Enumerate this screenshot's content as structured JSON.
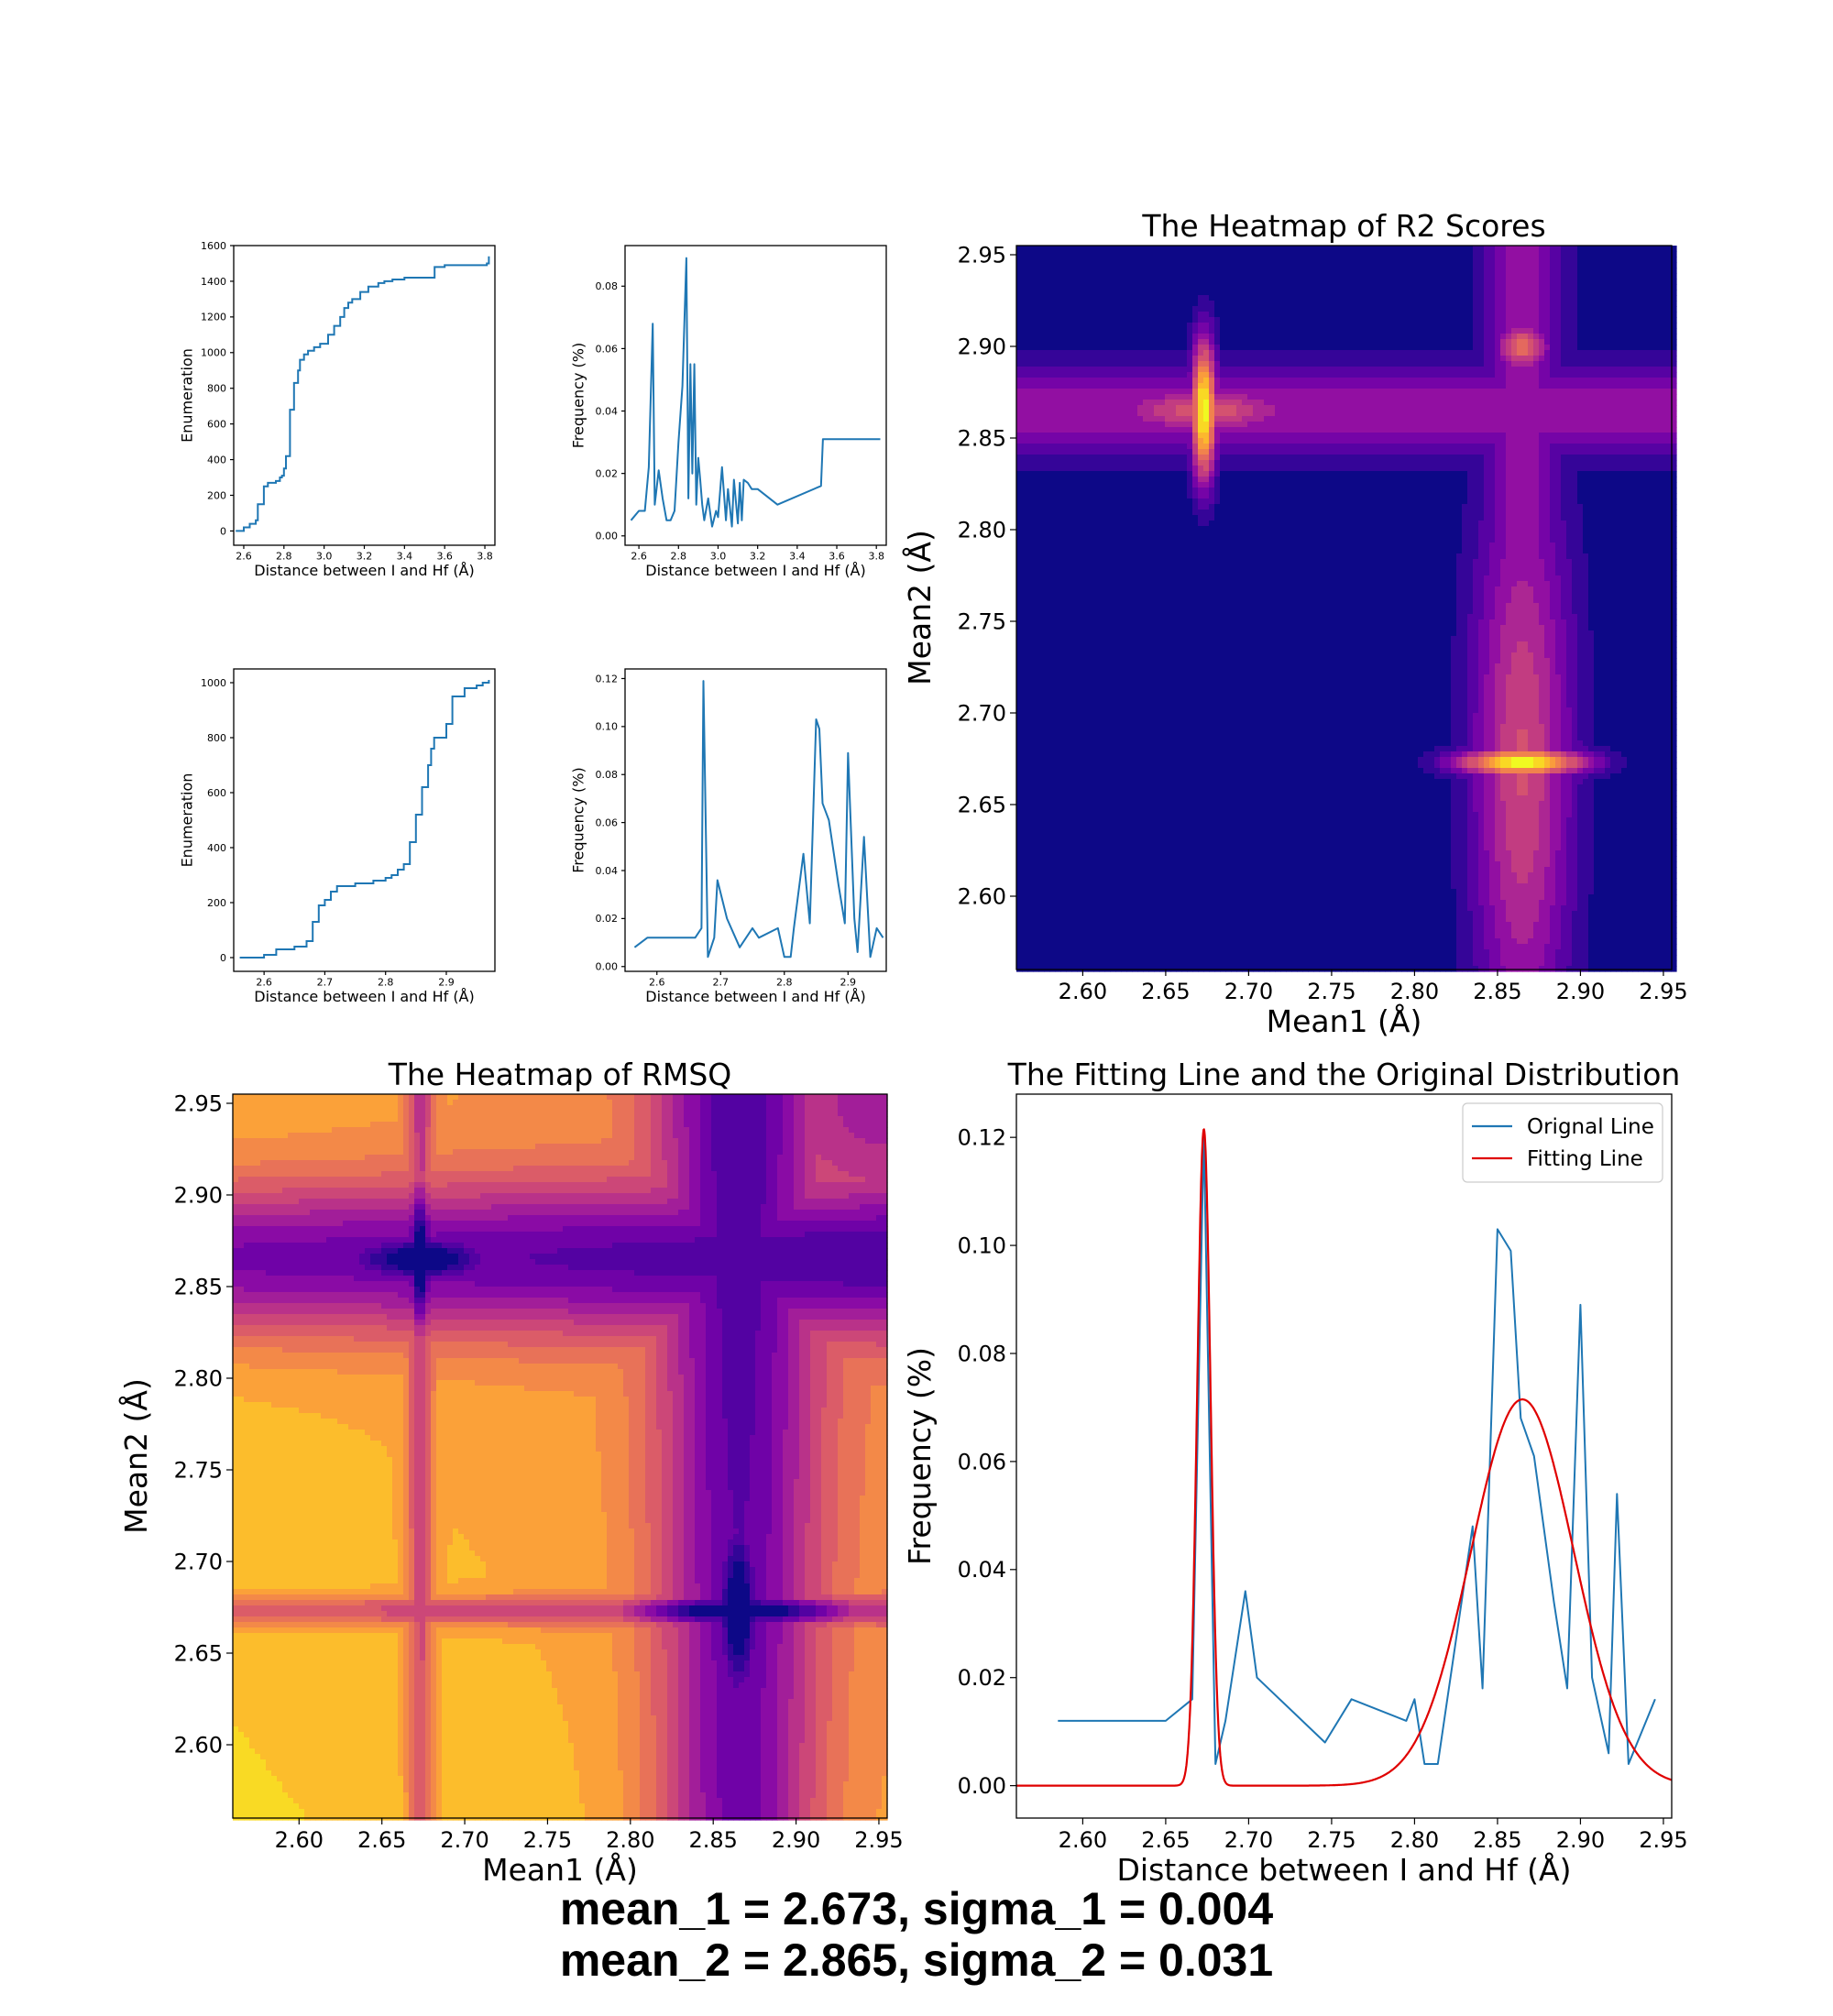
{
  "colors": {
    "line_blue": "#1f77b4",
    "fit_red": "#e00000",
    "plasma_low": "#0d0887",
    "plasma_high": "#f0f921"
  },
  "summary": {
    "line1": "mean_1 = 2.673, sigma_1 = 0.004",
    "line2": "mean_2 = 2.865, sigma_2 = 0.031"
  },
  "chart_data": [
    {
      "id": "cumulative_full",
      "type": "line",
      "title": "",
      "xlabel": "Distance between I and Hf (Å)",
      "ylabel": "Enumeration",
      "xlim": [
        2.55,
        3.85
      ],
      "ylim": [
        -80,
        1600
      ],
      "xticks": [
        "2.6",
        "2.8",
        "3.0",
        "3.2",
        "3.4",
        "3.6",
        "3.8"
      ],
      "yticks": [
        "0",
        "200",
        "400",
        "600",
        "800",
        "1000",
        "1200",
        "1400",
        "1600"
      ],
      "grid": false,
      "series": [
        {
          "x": [
            2.56,
            2.6,
            2.63,
            2.66,
            2.67,
            2.7,
            2.72,
            2.76,
            2.78,
            2.79,
            2.8,
            2.81,
            2.83,
            2.85,
            2.87,
            2.88,
            2.9,
            2.92,
            2.95,
            2.98,
            3.02,
            3.05,
            3.08,
            3.1,
            3.12,
            3.14,
            3.18,
            3.22,
            3.27,
            3.3,
            3.34,
            3.4,
            3.5,
            3.55,
            3.6,
            3.7,
            3.8,
            3.81,
            3.82
          ],
          "y": [
            0,
            20,
            40,
            60,
            150,
            250,
            270,
            280,
            300,
            310,
            350,
            420,
            680,
            830,
            900,
            960,
            990,
            1010,
            1030,
            1050,
            1100,
            1150,
            1200,
            1250,
            1280,
            1300,
            1340,
            1370,
            1390,
            1400,
            1410,
            1420,
            1420,
            1480,
            1490,
            1490,
            1490,
            1500,
            1540
          ]
        }
      ]
    },
    {
      "id": "frequency_full",
      "type": "line",
      "title": "",
      "xlabel": "Distance between I and Hf (Å)",
      "ylabel": "Frequency (%)",
      "xlim": [
        2.53,
        3.85
      ],
      "ylim": [
        -0.003,
        0.093
      ],
      "xticks": [
        "2.6",
        "2.8",
        "3.0",
        "3.2",
        "3.4",
        "3.6",
        "3.8"
      ],
      "yticks": [
        "0.00",
        "0.02",
        "0.04",
        "0.06",
        "0.08"
      ],
      "grid": false,
      "series": [
        {
          "x": [
            2.56,
            2.6,
            2.63,
            2.65,
            2.67,
            2.68,
            2.7,
            2.72,
            2.74,
            2.76,
            2.78,
            2.8,
            2.82,
            2.84,
            2.85,
            2.86,
            2.87,
            2.88,
            2.89,
            2.9,
            2.91,
            2.92,
            2.93,
            2.95,
            2.97,
            2.99,
            3.0,
            3.02,
            3.04,
            3.05,
            3.07,
            3.08,
            3.1,
            3.11,
            3.12,
            3.13,
            3.15,
            3.17,
            3.2,
            3.3,
            3.52,
            3.53,
            3.82
          ],
          "y": [
            0.005,
            0.008,
            0.008,
            0.022,
            0.068,
            0.01,
            0.021,
            0.012,
            0.005,
            0.005,
            0.008,
            0.03,
            0.048,
            0.089,
            0.012,
            0.055,
            0.02,
            0.055,
            0.01,
            0.025,
            0.018,
            0.01,
            0.005,
            0.012,
            0.003,
            0.008,
            0.006,
            0.022,
            0.005,
            0.015,
            0.003,
            0.018,
            0.004,
            0.017,
            0.005,
            0.018,
            0.017,
            0.015,
            0.015,
            0.01,
            0.016,
            0.031,
            0.031
          ]
        }
      ]
    },
    {
      "id": "cumulative_zoom",
      "type": "line",
      "title": "",
      "xlabel": "Distance between I and Hf (Å)",
      "ylabel": "Enumeration",
      "xlim": [
        2.55,
        2.98
      ],
      "ylim": [
        -50,
        1050
      ],
      "xticks": [
        "2.6",
        "2.7",
        "2.8",
        "2.9"
      ],
      "yticks": [
        "0",
        "200",
        "400",
        "600",
        "800",
        "1000"
      ],
      "grid": false,
      "series": [
        {
          "x": [
            2.56,
            2.6,
            2.62,
            2.65,
            2.67,
            2.68,
            2.69,
            2.7,
            2.71,
            2.72,
            2.75,
            2.78,
            2.8,
            2.81,
            2.82,
            2.83,
            2.84,
            2.85,
            2.86,
            2.87,
            2.875,
            2.88,
            2.9,
            2.91,
            2.93,
            2.95,
            2.96,
            2.97
          ],
          "y": [
            0,
            10,
            30,
            40,
            60,
            130,
            190,
            210,
            240,
            260,
            270,
            280,
            290,
            300,
            320,
            340,
            420,
            520,
            620,
            700,
            760,
            800,
            850,
            950,
            980,
            990,
            1000,
            1010
          ]
        }
      ]
    },
    {
      "id": "frequency_zoom",
      "type": "line",
      "title": "",
      "xlabel": "Distance between I and Hf (Å)",
      "ylabel": "Frequency (%)",
      "xlim": [
        2.55,
        2.96
      ],
      "ylim": [
        -0.002,
        0.124
      ],
      "xticks": [
        "2.6",
        "2.7",
        "2.8",
        "2.9"
      ],
      "yticks": [
        "0.00",
        "0.02",
        "0.04",
        "0.06",
        "0.08",
        "0.10",
        "0.12"
      ],
      "grid": false,
      "series": [
        {
          "x": [
            2.565,
            2.585,
            2.65,
            2.66,
            2.67,
            2.673,
            2.68,
            2.69,
            2.695,
            2.71,
            2.73,
            2.75,
            2.76,
            2.79,
            2.8,
            2.81,
            2.815,
            2.83,
            2.84,
            2.85,
            2.855,
            2.86,
            2.87,
            2.885,
            2.895,
            2.9,
            2.91,
            2.915,
            2.925,
            2.935,
            2.945,
            2.955
          ],
          "y": [
            0.008,
            0.012,
            0.012,
            0.012,
            0.016,
            0.119,
            0.004,
            0.012,
            0.036,
            0.02,
            0.008,
            0.016,
            0.012,
            0.016,
            0.004,
            0.004,
            0.016,
            0.047,
            0.018,
            0.103,
            0.099,
            0.068,
            0.061,
            0.034,
            0.018,
            0.089,
            0.02,
            0.006,
            0.054,
            0.004,
            0.016,
            0.012
          ]
        }
      ]
    },
    {
      "id": "r2_heatmap",
      "type": "heatmap",
      "title": "The Heatmap of R2 Scores",
      "xlabel": "Mean1 (Å)",
      "ylabel": "Mean2 (Å)",
      "xlim": [
        2.56,
        2.955
      ],
      "ylim": [
        2.56,
        2.955
      ],
      "xticks": [
        "2.60",
        "2.65",
        "2.70",
        "2.75",
        "2.80",
        "2.85",
        "2.90",
        "2.95"
      ],
      "yticks": [
        "2.60",
        "2.65",
        "2.70",
        "2.75",
        "2.80",
        "2.85",
        "2.90",
        "2.95"
      ],
      "colormap": "plasma",
      "peaks": [
        {
          "x": 2.673,
          "y": 2.865,
          "value": 0.9
        },
        {
          "x": 2.865,
          "y": 2.673,
          "value": 0.9
        }
      ]
    },
    {
      "id": "rmsq_heatmap",
      "type": "heatmap",
      "title": "The Heatmap of RMSQ",
      "xlabel": "Mean1 (Å)",
      "ylabel": "Mean2 (Å)",
      "xlim": [
        2.56,
        2.955
      ],
      "ylim": [
        2.56,
        2.955
      ],
      "xticks": [
        "2.60",
        "2.65",
        "2.70",
        "2.75",
        "2.80",
        "2.85",
        "2.90",
        "2.95"
      ],
      "yticks": [
        "2.60",
        "2.65",
        "2.70",
        "2.75",
        "2.80",
        "2.85",
        "2.90",
        "2.95"
      ],
      "colormap": "plasma",
      "minima": [
        {
          "x": 2.673,
          "y": 2.865
        },
        {
          "x": 2.865,
          "y": 2.673
        }
      ]
    },
    {
      "id": "fit_comparison",
      "type": "line",
      "title": "The Fitting Line and the Original Distribution",
      "xlabel": "Distance between I and Hf (Å)",
      "ylabel": "Frequency (%)",
      "xlim": [
        2.56,
        2.955
      ],
      "ylim": [
        -0.006,
        0.128
      ],
      "xticks": [
        "2.60",
        "2.65",
        "2.70",
        "2.75",
        "2.80",
        "2.85",
        "2.90",
        "2.95"
      ],
      "yticks": [
        "0.00",
        "0.02",
        "0.04",
        "0.06",
        "0.08",
        "0.10",
        "0.12"
      ],
      "legend": "top-right",
      "series": [
        {
          "name": "Orignal Line",
          "x": [
            2.585,
            2.65,
            2.666,
            2.673,
            2.68,
            2.686,
            2.698,
            2.705,
            2.746,
            2.762,
            2.795,
            2.8,
            2.806,
            2.814,
            2.835,
            2.841,
            2.85,
            2.858,
            2.864,
            2.872,
            2.884,
            2.892,
            2.9,
            2.907,
            2.917,
            2.922,
            2.929,
            2.945
          ],
          "y": [
            0.012,
            0.012,
            0.016,
            0.121,
            0.004,
            0.012,
            0.036,
            0.02,
            0.008,
            0.016,
            0.012,
            0.016,
            0.004,
            0.004,
            0.048,
            0.018,
            0.103,
            0.099,
            0.068,
            0.061,
            0.034,
            0.018,
            0.089,
            0.02,
            0.006,
            0.054,
            0.004,
            0.016
          ]
        },
        {
          "name": "Fitting Line",
          "components": [
            {
              "mean": 2.673,
              "sigma": 0.004,
              "amplitude": 0.1215
            },
            {
              "mean": 2.865,
              "sigma": 0.031,
              "amplitude": 0.0715
            }
          ]
        }
      ]
    }
  ]
}
